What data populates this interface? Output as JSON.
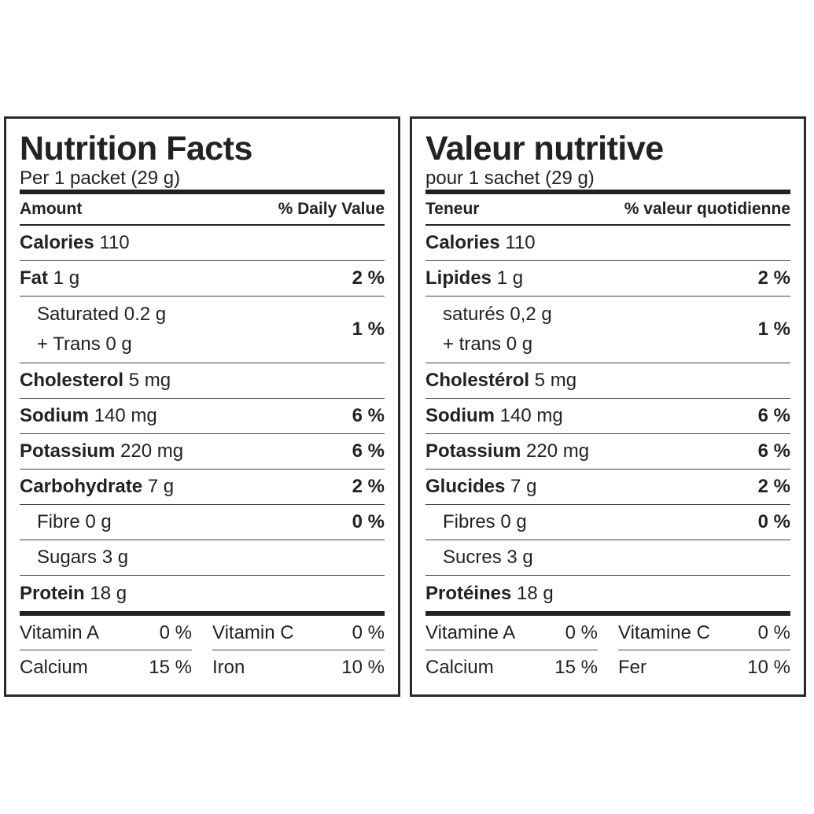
{
  "panels": [
    {
      "title": "Nutrition Facts",
      "serving": "Per 1 packet (29 g)",
      "header": {
        "left": "Amount",
        "right": "% Daily Value"
      },
      "rows": [
        {
          "name": "Calories",
          "amount": "110"
        },
        {
          "name": "Fat",
          "amount": "1 g",
          "dv": "2 %"
        },
        {
          "text": [
            "Saturated 0.2 g",
            "+ Trans 0 g"
          ],
          "dv": "1 %"
        },
        {
          "name": "Cholesterol",
          "amount": "5 mg"
        },
        {
          "name": "Sodium",
          "amount": "140 mg",
          "dv": "6 %"
        },
        {
          "name": "Potassium",
          "amount": "220 mg",
          "dv": "6 %"
        },
        {
          "name": "Carbohydrate",
          "amount": "7 g",
          "dv": "2 %"
        },
        {
          "text": [
            "Fibre 0 g"
          ],
          "dv": "0 %"
        },
        {
          "text": [
            "Sugars 3 g"
          ]
        },
        {
          "name": "Protein",
          "amount": "18 g"
        }
      ],
      "vitamins": [
        {
          "name": "Vitamin A",
          "dv": "0 %"
        },
        {
          "name": "Vitamin C",
          "dv": "0 %"
        },
        {
          "name": "Calcium",
          "dv": "15 %"
        },
        {
          "name": "Iron",
          "dv": "10 %"
        }
      ]
    },
    {
      "title": "Valeur nutritive",
      "serving": "pour 1 sachet (29 g)",
      "header": {
        "left": "Teneur",
        "right": "% valeur quotidienne"
      },
      "rows": [
        {
          "name": "Calories",
          "amount": "110"
        },
        {
          "name": "Lipides",
          "amount": "1 g",
          "dv": "2 %"
        },
        {
          "text": [
            "saturés 0,2 g",
            "+ trans 0 g"
          ],
          "dv": "1 %"
        },
        {
          "name": "Cholestérol",
          "amount": "5 mg"
        },
        {
          "name": "Sodium",
          "amount": "140 mg",
          "dv": "6 %"
        },
        {
          "name": "Potassium",
          "amount": "220 mg",
          "dv": "6 %"
        },
        {
          "name": "Glucides",
          "amount": "7 g",
          "dv": "2 %"
        },
        {
          "text": [
            "Fibres 0 g"
          ],
          "dv": "0 %"
        },
        {
          "text": [
            "Sucres 3 g"
          ]
        },
        {
          "name": "Protéines",
          "amount": "18 g"
        }
      ],
      "vitamins": [
        {
          "name": "Vitamine A",
          "dv": "0 %"
        },
        {
          "name": "Vitamine C",
          "dv": "0 %"
        },
        {
          "name": "Calcium",
          "dv": "15 %"
        },
        {
          "name": "Fer",
          "dv": "10 %"
        }
      ]
    }
  ]
}
